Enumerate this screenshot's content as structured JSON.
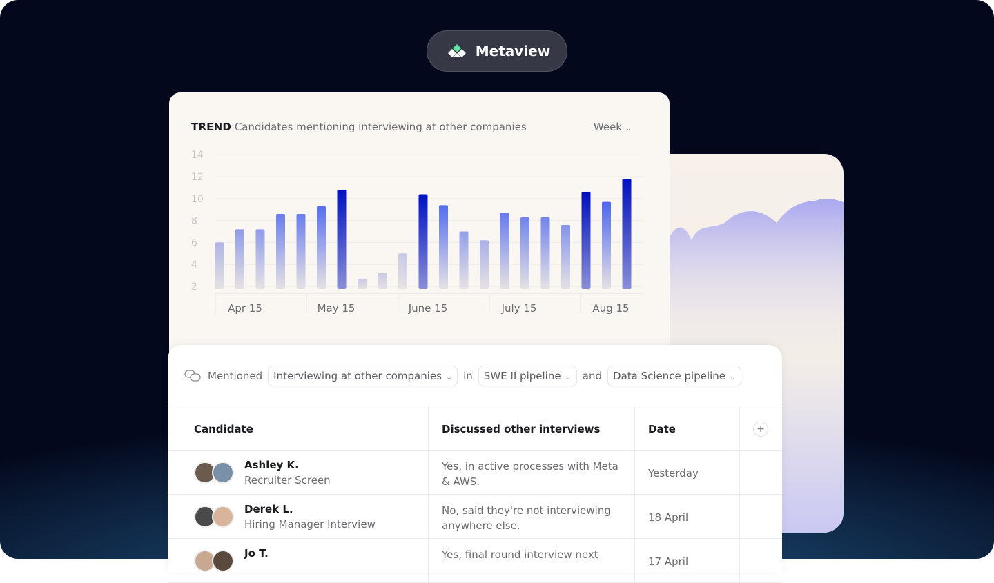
{
  "brand": {
    "name": "Metaview"
  },
  "trend": {
    "label": "TREND",
    "title": "Candidates mentioning interviewing at other companies",
    "period": "Week"
  },
  "chart_data": {
    "type": "bar",
    "values": [
      6.0,
      7.2,
      7.2,
      8.6,
      8.6,
      9.3,
      10.8,
      2.7,
      3.2,
      5.0,
      10.4,
      9.4,
      7.0,
      6.2,
      8.7,
      8.3,
      8.3,
      7.6,
      10.6,
      9.7,
      11.8
    ],
    "x_tick_labels": [
      "Apr 15",
      "May 15",
      "June 15",
      "July 15",
      "Aug 15"
    ],
    "y_ticks": [
      2,
      4,
      6,
      8,
      10,
      12,
      14
    ],
    "ylim": [
      2,
      14
    ],
    "grid": true,
    "colors": {
      "high": "#0010c0",
      "mid": "#3f5cf0",
      "low": "#c9c9e6"
    }
  },
  "filters": {
    "prefix": "Mentioned",
    "topic": "Interviewing at other companies",
    "in": "in",
    "pipeline1": "SWE II pipeline",
    "and": "and",
    "pipeline2": "Data Science pipeline"
  },
  "table": {
    "headers": [
      "Candidate",
      "Discussed other interviews",
      "Date"
    ],
    "add_column": "+",
    "rows": [
      {
        "name": "Ashley K.",
        "stage": "Recruiter Screen",
        "discussed": "Yes, in active processes with Meta & AWS.",
        "date": "Yesterday"
      },
      {
        "name": "Derek L.",
        "stage": "Hiring Manager Interview",
        "discussed": "No, said they're not interviewing anywhere else.",
        "date": "18 April"
      },
      {
        "name": "Jo T.",
        "stage": "",
        "discussed": "Yes, final round interview next",
        "date": "17 April"
      }
    ]
  }
}
